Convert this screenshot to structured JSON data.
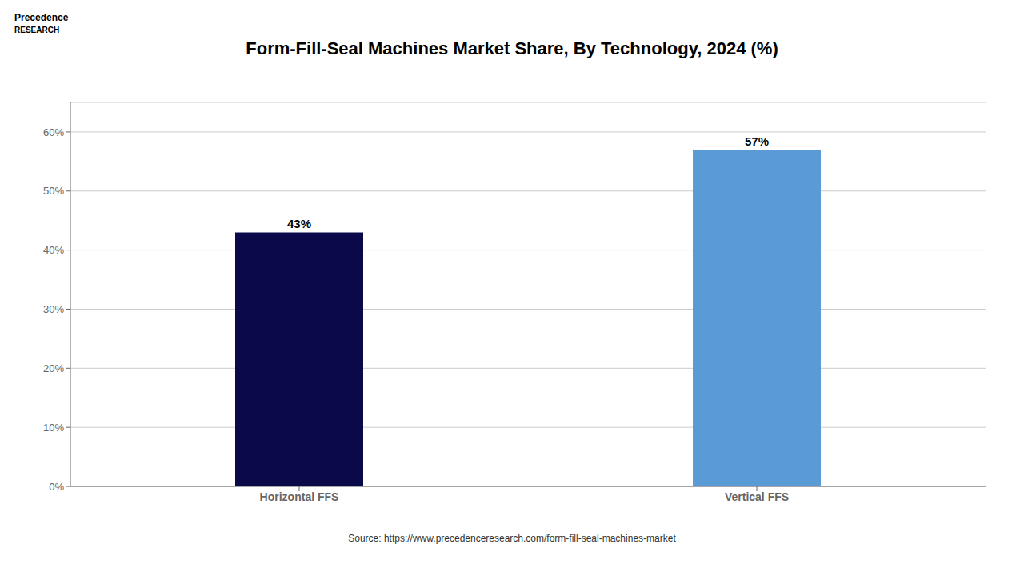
{
  "chart_data": {
    "type": "bar",
    "title": "Form-Fill-Seal Machines Market Share, By Technology, 2024 (%)",
    "categories": [
      "Horizontal FFS",
      "Vertical FFS"
    ],
    "values": [
      43,
      57
    ],
    "value_labels": [
      "43%",
      "57%"
    ],
    "data_labels": true,
    "colors": [
      "#0a0a4a",
      "#5b9bd5"
    ],
    "ylim": [
      0,
      65
    ],
    "yticks": [
      {
        "value": 0,
        "label": "0%"
      },
      {
        "value": 10,
        "label": "10%"
      },
      {
        "value": 20,
        "label": "20%"
      },
      {
        "value": 30,
        "label": "30%"
      },
      {
        "value": 40,
        "label": "40%"
      },
      {
        "value": 50,
        "label": "50%"
      },
      {
        "value": 60,
        "label": "60%"
      }
    ],
    "grid": true,
    "annotations": [
      "Precedence",
      "RESEARCH",
      "Source: https://www.precedenceresearch.com/form-fill-seal-machines-market"
    ]
  }
}
